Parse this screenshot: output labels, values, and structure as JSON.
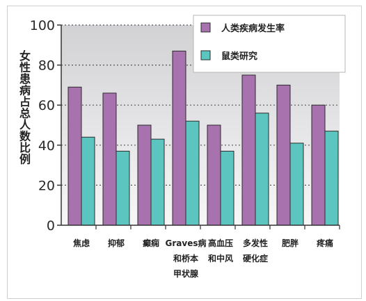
{
  "chart_data": {
    "type": "bar",
    "ylabel": "女性患病占总人数比例",
    "ylim": [
      0,
      100
    ],
    "yticks": [
      0,
      20,
      40,
      60,
      80,
      100
    ],
    "grid": true,
    "legend_position": "top-right",
    "categories": [
      [
        "焦虑"
      ],
      [
        "抑郁"
      ],
      [
        "癫痫"
      ],
      [
        "Graves病",
        "和桥本",
        "甲状腺"
      ],
      [
        "高血压",
        "和中风"
      ],
      [
        "多发性",
        "硬化症"
      ],
      [
        "肥胖"
      ],
      [
        "疼痛"
      ]
    ],
    "series": [
      {
        "name": "人类疾病发生率",
        "color": "#a772ad",
        "values": [
          69,
          66,
          50,
          87,
          50,
          75,
          70,
          60
        ]
      },
      {
        "name": "鼠类研究",
        "color": "#5cc5c0",
        "values": [
          44,
          37,
          43,
          52,
          37,
          56,
          41,
          47
        ]
      }
    ]
  }
}
